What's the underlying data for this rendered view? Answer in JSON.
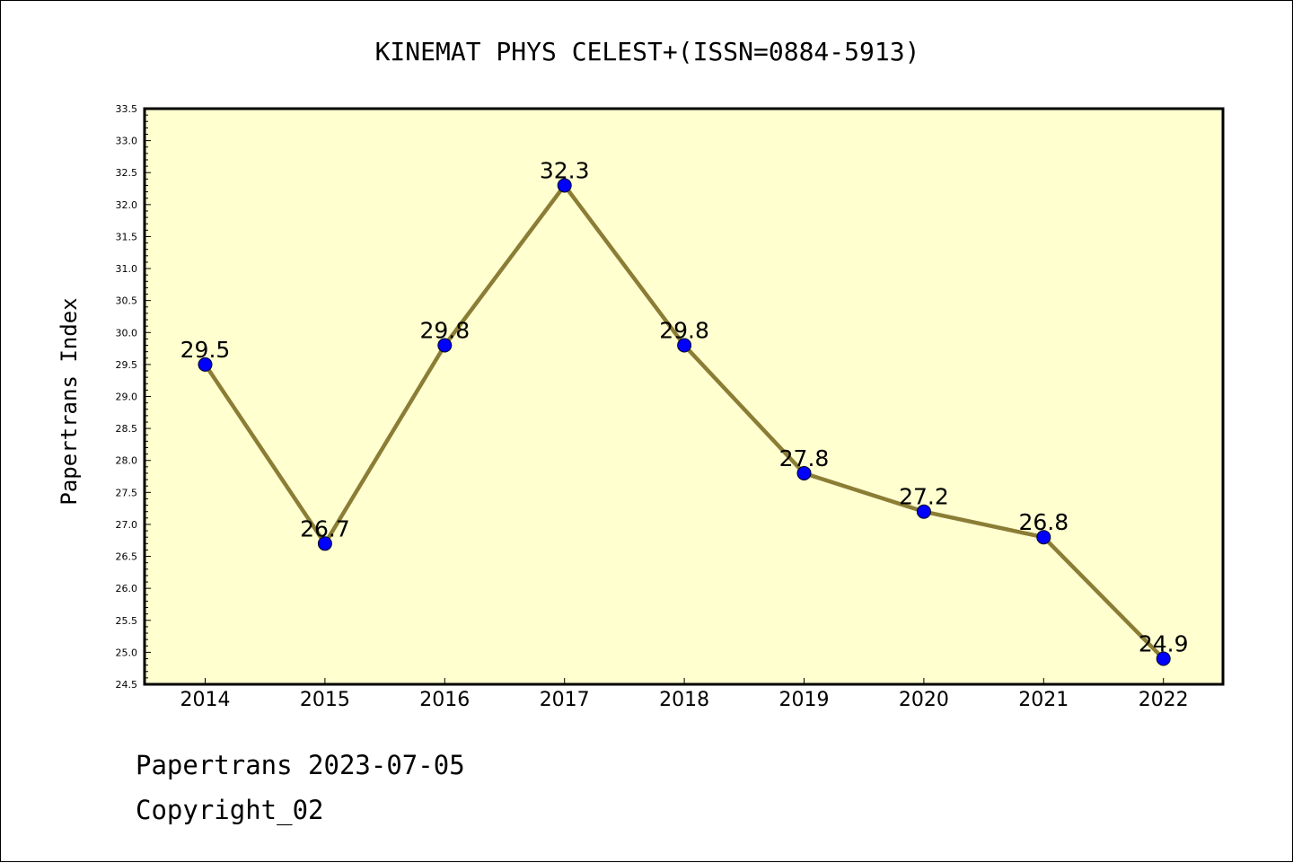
{
  "chart_data": {
    "type": "line",
    "title": "KINEMAT PHYS CELEST+(ISSN=0884-5913)",
    "xlabel": "",
    "ylabel": "Papertrans Index",
    "categories": [
      "2014",
      "2015",
      "2016",
      "2017",
      "2018",
      "2019",
      "2020",
      "2021",
      "2022"
    ],
    "series": [
      {
        "values": [
          29.5,
          26.7,
          29.8,
          32.3,
          29.8,
          27.8,
          27.2,
          26.8,
          24.9
        ]
      }
    ],
    "data_labels": [
      "29.5",
      "26.7",
      "29.8",
      "32.3",
      "29.8",
      "27.8",
      "27.2",
      "26.8",
      "24.9"
    ],
    "ylim": [
      24.5,
      33.5
    ],
    "yticks": [
      "24.5",
      "25.0",
      "25.5",
      "26.0",
      "26.5",
      "27.0",
      "27.5",
      "28.0",
      "28.5",
      "29.0",
      "29.5",
      "30.0",
      "30.5",
      "31.0",
      "31.5",
      "32.0",
      "32.5",
      "33.0",
      "33.5"
    ],
    "grid": false,
    "colors": {
      "plot_background": "#ffffd0",
      "line": "#8b7d35",
      "marker": "#0000ff"
    }
  },
  "footer": {
    "date_line": "Papertrans 2023-07-05",
    "copyright": "Copyright_02"
  }
}
